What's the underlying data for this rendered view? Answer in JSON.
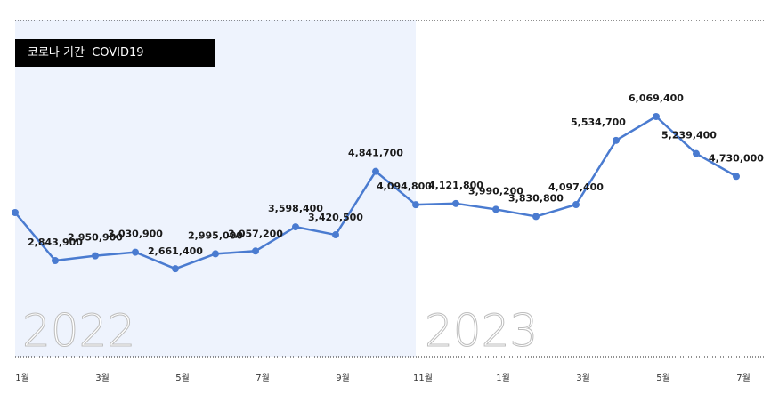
{
  "badge": {
    "label": "코로나 기간  COVID19"
  },
  "colors": {
    "line": "#4a7bd0",
    "highlight_band": "#eef3fd",
    "dotted_rule": "#222222"
  },
  "chart_data": {
    "type": "line",
    "categories": [
      "1월",
      "",
      "3월",
      "",
      "5월",
      "",
      "7월",
      "",
      "9월",
      "",
      "11월",
      "",
      "1월",
      "",
      "3월",
      "",
      "5월",
      "",
      "7월"
    ],
    "tick_labels": [
      "1월",
      "3월",
      "5월",
      "7월",
      "9월",
      "11월",
      "1월",
      "3월",
      "5월",
      "7월"
    ],
    "year_labels": [
      "2022",
      "2023"
    ],
    "highlight_region": {
      "label": "코로나 기간  COVID19",
      "from_index": 0,
      "to_index": 10
    },
    "series": [
      {
        "values": [
          null,
          2843900,
          2950900,
          3030900,
          2661400,
          2995000,
          3057200,
          3598400,
          3420500,
          4841700,
          4094800,
          4121800,
          3990200,
          3830800,
          4097400,
          5534700,
          6069400,
          5239400,
          4730000
        ],
        "data_labels": [
          "",
          "2,843,900",
          "2,950,900",
          "3,030,900",
          "2,661,400",
          "2,995,000",
          "3,057,200",
          "3,598,400",
          "3,420,500",
          "4,841,700",
          "4,094,800",
          "4,121,800",
          "3,990,200",
          "3,830,800",
          "4,097,400",
          "5,534,700",
          "6,069,400",
          "5,239,400",
          "4,730,000"
        ]
      }
    ],
    "grid": false
  }
}
